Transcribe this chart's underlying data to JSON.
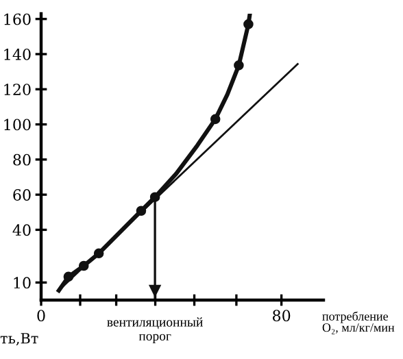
{
  "chart_data": {
    "type": "line",
    "xlabel": "потребление O₂, мл/кг/мин",
    "ylabel": "ть,Вт",
    "xlim": [
      0,
      94
    ],
    "ylim": [
      0,
      163
    ],
    "xticks": [
      0,
      {
        "value": 13,
        "label": null
      },
      {
        "value": 25,
        "label": null
      },
      {
        "value": 38,
        "label": null
      },
      {
        "value": 51,
        "label": null
      },
      {
        "value": 65,
        "label": null
      },
      80
    ],
    "yticks": [
      10,
      40,
      60,
      80,
      100,
      120,
      140,
      160
    ],
    "series": [
      {
        "color": "#111111",
        "x": [
          5.9,
          9.1,
          14.2,
          19.2,
          33.3,
          37.9,
          45,
          52,
          58,
          62,
          65.8,
          69,
          69.5
        ],
        "values": [
          5.5,
          13.3,
          19.5,
          26.6,
          50.8,
          58.6,
          72,
          88,
          103,
          117,
          133.6,
          157,
          163
        ]
      },
      {
        "type": "scatter",
        "color": "#111111",
        "marker": "circle",
        "x": [
          9.1,
          14.2,
          19.2,
          33.3,
          37.9,
          58,
          65.8,
          69
        ],
        "values": [
          13.3,
          19.5,
          26.6,
          50.8,
          58.6,
          103,
          133.6,
          157
        ]
      },
      {
        "color": "#111111",
        "x": [
          5.9,
          85.4
        ],
        "values": [
          5.5,
          134.4
        ]
      }
    ],
    "ref_lines": [
      {
        "axis": "x",
        "value": 37.9,
        "label": "вентиляционный\nпорог",
        "color": "#111111"
      }
    ],
    "grid": false
  }
}
